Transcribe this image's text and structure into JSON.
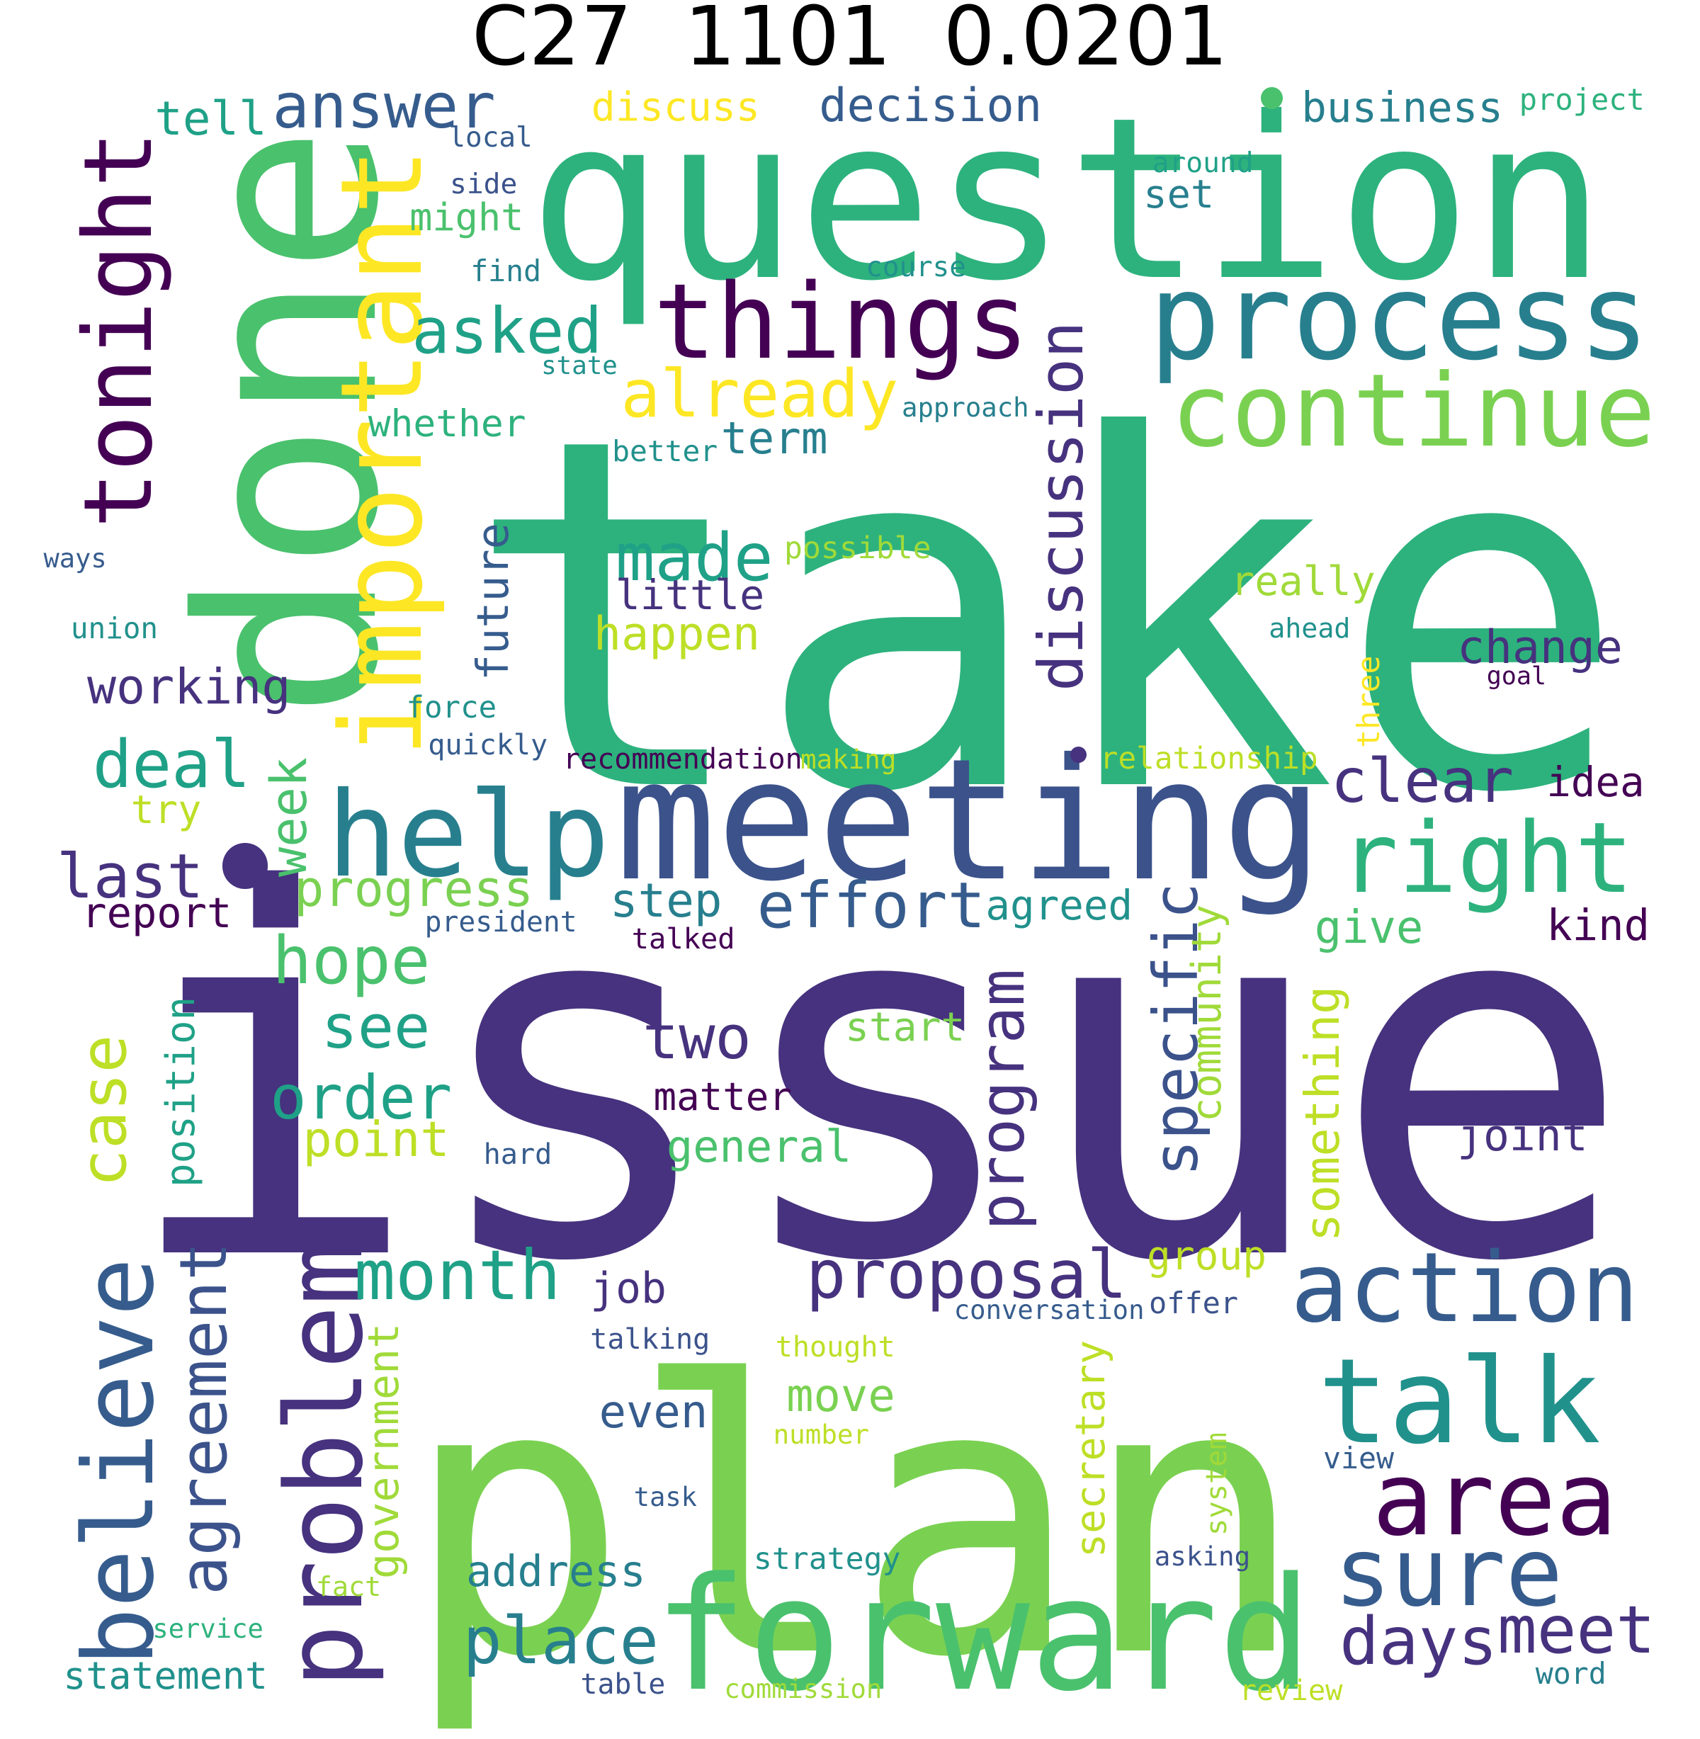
{
  "title": "C27  1101  0.0201",
  "palette": {
    "dark_purple": "#46327e",
    "indigo": "#3b528b",
    "steel_blue": "#365c8d",
    "teal_blue": "#277f8e",
    "teal": "#21918c",
    "sea_green": "#1fa187",
    "emerald": "#2db27d",
    "green": "#4ac16d",
    "light_green": "#7ad151",
    "lime": "#a0da39",
    "yellow_green": "#bddf26",
    "yellow": "#fde725",
    "deep_purple": "#440154"
  },
  "words": [
    {
      "text": "take"
    },
    {
      "text": "issue"
    },
    {
      "text": "plan"
    },
    {
      "text": "question"
    },
    {
      "text": "done"
    },
    {
      "text": "meeting"
    },
    {
      "text": "forward"
    },
    {
      "text": "help"
    },
    {
      "text": "important"
    },
    {
      "text": "things"
    },
    {
      "text": "process"
    },
    {
      "text": "continue"
    },
    {
      "text": "tonight"
    },
    {
      "text": "problem"
    },
    {
      "text": "talk"
    },
    {
      "text": "action"
    },
    {
      "text": "area"
    },
    {
      "text": "sure"
    },
    {
      "text": "right"
    },
    {
      "text": "believe"
    },
    {
      "text": "proposal"
    },
    {
      "text": "month"
    },
    {
      "text": "effort"
    },
    {
      "text": "discussion"
    },
    {
      "text": "answer"
    },
    {
      "text": "already"
    },
    {
      "text": "asked"
    },
    {
      "text": "made"
    },
    {
      "text": "deal"
    },
    {
      "text": "last"
    },
    {
      "text": "hope"
    },
    {
      "text": "order"
    },
    {
      "text": "two"
    },
    {
      "text": "see"
    },
    {
      "text": "place"
    },
    {
      "text": "days"
    },
    {
      "text": "meet"
    },
    {
      "text": "agreement"
    },
    {
      "text": "case"
    },
    {
      "text": "program"
    },
    {
      "text": "specific"
    },
    {
      "text": "clear"
    },
    {
      "text": "change"
    },
    {
      "text": "decision"
    },
    {
      "text": "business"
    },
    {
      "text": "working"
    },
    {
      "text": "happen"
    },
    {
      "text": "little"
    },
    {
      "text": "future"
    },
    {
      "text": "tell"
    },
    {
      "text": "discuss"
    },
    {
      "text": "really"
    },
    {
      "text": "progress"
    },
    {
      "text": "step"
    },
    {
      "text": "report"
    },
    {
      "text": "agreed"
    },
    {
      "text": "give"
    },
    {
      "text": "kind"
    },
    {
      "text": "idea"
    },
    {
      "text": "point"
    },
    {
      "text": "general"
    },
    {
      "text": "joint"
    },
    {
      "text": "move"
    },
    {
      "text": "even"
    },
    {
      "text": "job"
    },
    {
      "text": "address"
    },
    {
      "text": "week"
    },
    {
      "text": "try"
    },
    {
      "text": "term"
    },
    {
      "text": "whether"
    },
    {
      "text": "might"
    },
    {
      "text": "set"
    },
    {
      "text": "matter"
    },
    {
      "text": "start"
    },
    {
      "text": "group"
    },
    {
      "text": "something"
    },
    {
      "text": "community"
    },
    {
      "text": "position"
    },
    {
      "text": "government"
    },
    {
      "text": "secretary"
    },
    {
      "text": "statement"
    },
    {
      "text": "offer"
    },
    {
      "text": "talking"
    },
    {
      "text": "thought"
    },
    {
      "text": "strategy"
    },
    {
      "text": "view"
    },
    {
      "text": "system"
    },
    {
      "text": "asking"
    },
    {
      "text": "word"
    },
    {
      "text": "review"
    },
    {
      "text": "commission"
    },
    {
      "text": "table"
    },
    {
      "text": "service"
    },
    {
      "text": "fact"
    },
    {
      "text": "task"
    },
    {
      "text": "number"
    },
    {
      "text": "conversation"
    },
    {
      "text": "hard"
    },
    {
      "text": "president"
    },
    {
      "text": "talked"
    },
    {
      "text": "recommendation"
    },
    {
      "text": "making"
    },
    {
      "text": "relationship"
    },
    {
      "text": "quickly"
    },
    {
      "text": "force"
    },
    {
      "text": "three"
    },
    {
      "text": "goal"
    },
    {
      "text": "ahead"
    },
    {
      "text": "union"
    },
    {
      "text": "ways"
    },
    {
      "text": "possible"
    },
    {
      "text": "better"
    },
    {
      "text": "approach"
    },
    {
      "text": "state"
    },
    {
      "text": "course"
    },
    {
      "text": "find"
    },
    {
      "text": "side"
    },
    {
      "text": "local"
    },
    {
      "text": "around"
    },
    {
      "text": "project"
    }
  ]
}
